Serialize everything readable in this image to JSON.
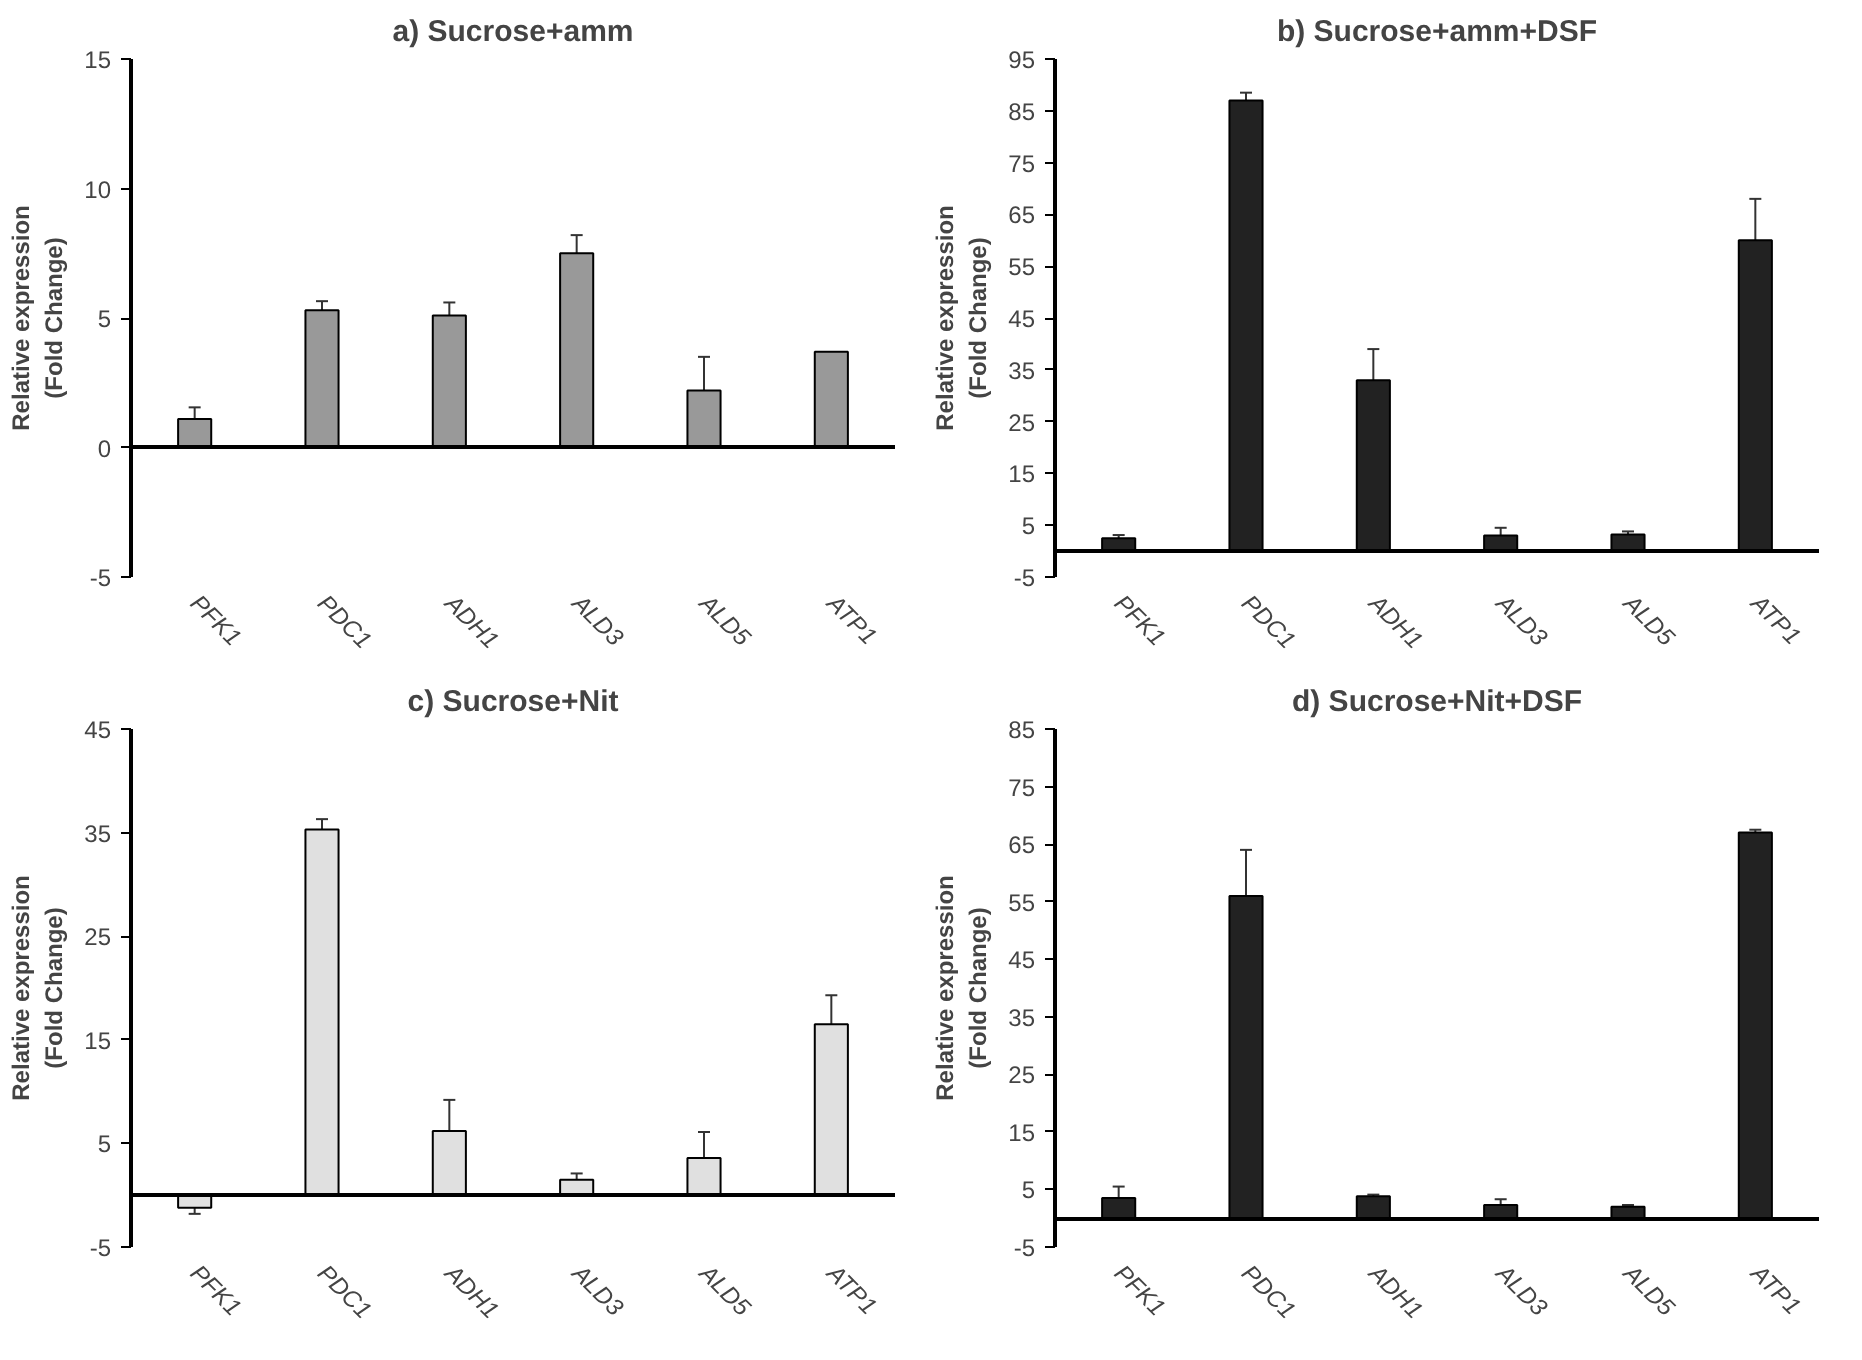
{
  "chart_data": [
    {
      "type": "bar",
      "title": "a) Sucrose+amm",
      "ylabel": "Relative expression\n(Fold Change)",
      "categories": [
        "PFK1",
        "PDC1",
        "ADH1",
        "ALD3",
        "ALD5",
        "ATP1"
      ],
      "ylim": [
        -5,
        15
      ],
      "yticks": [
        -5,
        0,
        5,
        10,
        15
      ],
      "series": [
        {
          "color": "#999999",
          "values": [
            1.1,
            5.3,
            5.1,
            7.5,
            2.2,
            3.7
          ],
          "errors": [
            0.45,
            0.35,
            0.5,
            0.7,
            1.3,
            null
          ]
        }
      ]
    },
    {
      "type": "bar",
      "title": "b) Sucrose+amm+DSF",
      "ylabel": "Relative expression\n(Fold Change)",
      "categories": [
        "PFK1",
        "PDC1",
        "ADH1",
        "ALD3",
        "ALD5",
        "ATP1"
      ],
      "ylim": [
        -5,
        95
      ],
      "yticks": [
        -5,
        5,
        15,
        25,
        35,
        45,
        55,
        65,
        75,
        85,
        95
      ],
      "series": [
        {
          "color": "#222222",
          "values": [
            2.5,
            87,
            33,
            3,
            3.2,
            60
          ],
          "errors": [
            0.6,
            1.5,
            6,
            1.5,
            0.6,
            8
          ]
        }
      ]
    },
    {
      "type": "bar",
      "title": "c) Sucrose+Nit",
      "ylabel": "Relative expression\n(Fold Change)",
      "categories": [
        "PFK1",
        "PDC1",
        "ADH1",
        "ALD3",
        "ALD5",
        "ATP1"
      ],
      "ylim": [
        -5,
        45
      ],
      "yticks": [
        -5,
        5,
        15,
        25,
        35,
        45
      ],
      "series": [
        {
          "color": "#e0e0e0",
          "values": [
            -1.2,
            35.3,
            6.2,
            1.5,
            3.6,
            16.5
          ],
          "errors": [
            0.6,
            1,
            3,
            0.6,
            2.5,
            2.8
          ]
        }
      ]
    },
    {
      "type": "bar",
      "title": "d) Sucrose+Nit+DSF",
      "ylabel": "Relative expression\n(Fold Change)",
      "categories": [
        "PFK1",
        "PDC1",
        "ADH1",
        "ALD3",
        "ALD5",
        "ATP1"
      ],
      "ylim": [
        -5,
        85
      ],
      "yticks": [
        -5,
        5,
        15,
        25,
        35,
        45,
        55,
        65,
        75,
        85
      ],
      "series": [
        {
          "color": "#222222",
          "values": [
            3.5,
            56,
            3.8,
            2.3,
            2,
            67
          ],
          "errors": [
            2,
            8,
            0.3,
            1,
            0.3,
            0.5
          ]
        }
      ]
    }
  ]
}
